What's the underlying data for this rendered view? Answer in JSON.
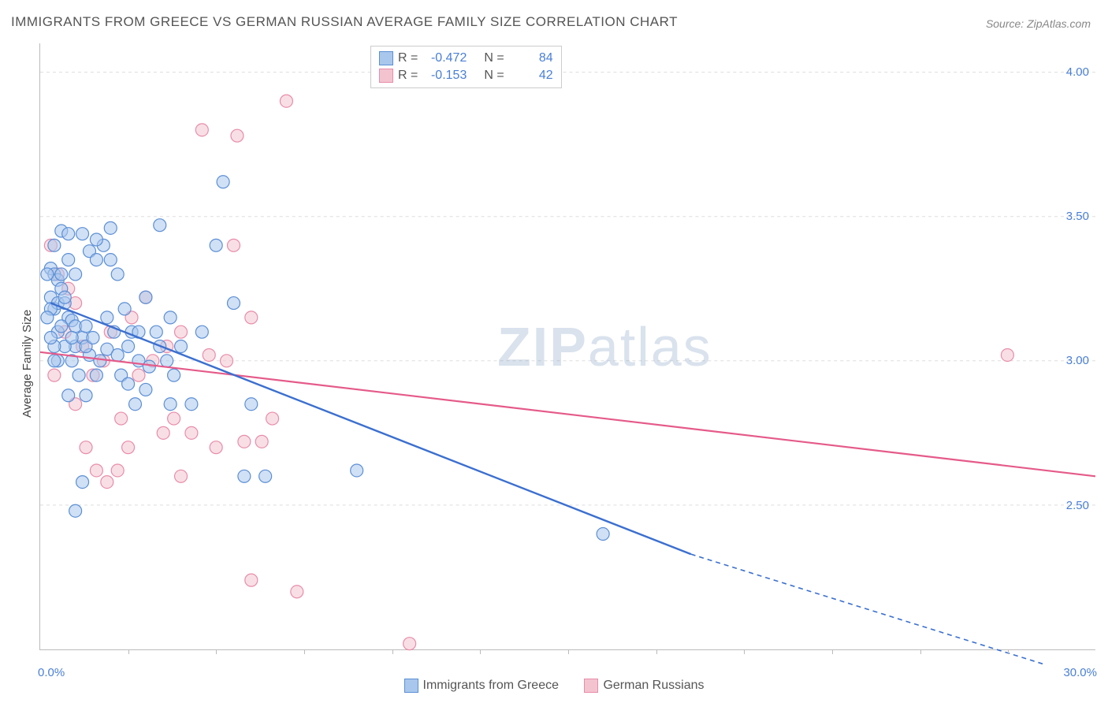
{
  "title": "IMMIGRANTS FROM GREECE VS GERMAN RUSSIAN AVERAGE FAMILY SIZE CORRELATION CHART",
  "source_label": "Source:",
  "source_value": "ZipAtlas.com",
  "watermark_zip": "ZIP",
  "watermark_atlas": "atlas",
  "chart": {
    "type": "scatter",
    "xlim": [
      0,
      30
    ],
    "ylim": [
      2.0,
      4.1
    ],
    "x_min_label": "0.0%",
    "x_max_label": "30.0%",
    "y_ticks": [
      2.5,
      3.0,
      3.5,
      4.0
    ],
    "y_tick_labels": [
      "2.50",
      "3.00",
      "3.50",
      "4.00"
    ],
    "x_tick_positions": [
      2.5,
      5,
      7.5,
      10,
      12.5,
      15,
      17.5,
      20,
      22.5,
      25,
      27.5
    ],
    "y_axis_title": "Average Family Size",
    "background_color": "#ffffff",
    "grid_color": "#dddddd",
    "marker_radius": 8,
    "marker_opacity": 0.55,
    "series": {
      "greece": {
        "label": "Immigrants from Greece",
        "fill": "#a9c7ec",
        "stroke": "#5b8fd6",
        "line_color": "#3b6fd0",
        "R_label": "R =",
        "R_value": "-0.472",
        "N_label": "N =",
        "N_value": "84",
        "trend": {
          "x1": 0.3,
          "y1": 3.2,
          "x2_solid": 18.5,
          "y2_solid": 2.33,
          "x2_dash": 28.5,
          "y2_dash": 1.95
        },
        "points": [
          [
            0.3,
            3.32
          ],
          [
            0.4,
            3.3
          ],
          [
            0.5,
            3.28
          ],
          [
            0.3,
            3.22
          ],
          [
            0.4,
            3.18
          ],
          [
            0.5,
            3.2
          ],
          [
            0.6,
            3.25
          ],
          [
            0.7,
            3.2
          ],
          [
            0.8,
            3.15
          ],
          [
            0.9,
            3.14
          ],
          [
            1.0,
            3.12
          ],
          [
            0.4,
            3.4
          ],
          [
            0.6,
            3.45
          ],
          [
            1.2,
            3.44
          ],
          [
            1.4,
            3.38
          ],
          [
            1.6,
            3.35
          ],
          [
            1.8,
            3.4
          ],
          [
            2.0,
            3.35
          ],
          [
            2.2,
            3.3
          ],
          [
            2.4,
            3.18
          ],
          [
            2.6,
            3.1
          ],
          [
            2.8,
            3.0
          ],
          [
            3.0,
            3.22
          ],
          [
            3.4,
            3.47
          ],
          [
            3.6,
            3.0
          ],
          [
            3.8,
            2.95
          ],
          [
            1.0,
            3.05
          ],
          [
            1.2,
            3.08
          ],
          [
            1.4,
            3.02
          ],
          [
            0.5,
            3.1
          ],
          [
            0.7,
            3.05
          ],
          [
            0.9,
            3.0
          ],
          [
            1.1,
            2.95
          ],
          [
            1.3,
            3.05
          ],
          [
            1.5,
            3.08
          ],
          [
            1.7,
            3.0
          ],
          [
            1.9,
            3.04
          ],
          [
            2.1,
            3.1
          ],
          [
            2.3,
            2.95
          ],
          [
            2.5,
            3.05
          ],
          [
            2.7,
            2.85
          ],
          [
            3.0,
            2.9
          ],
          [
            3.3,
            3.1
          ],
          [
            3.7,
            2.85
          ],
          [
            4.0,
            3.05
          ],
          [
            4.3,
            2.85
          ],
          [
            4.6,
            3.1
          ],
          [
            5.0,
            3.4
          ],
          [
            5.2,
            3.62
          ],
          [
            5.5,
            3.2
          ],
          [
            5.8,
            2.6
          ],
          [
            6.0,
            2.85
          ],
          [
            6.4,
            2.6
          ],
          [
            9.0,
            2.62
          ],
          [
            16.0,
            2.4
          ],
          [
            0.8,
            2.88
          ],
          [
            1.0,
            2.48
          ],
          [
            1.3,
            2.88
          ],
          [
            1.6,
            3.42
          ],
          [
            2.0,
            3.46
          ],
          [
            0.3,
            3.18
          ],
          [
            0.6,
            3.3
          ],
          [
            0.9,
            3.08
          ],
          [
            0.5,
            3.0
          ],
          [
            1.2,
            2.58
          ],
          [
            0.8,
            3.44
          ],
          [
            0.4,
            3.05
          ],
          [
            0.7,
            3.22
          ],
          [
            1.0,
            3.3
          ],
          [
            1.3,
            3.12
          ],
          [
            1.6,
            2.95
          ],
          [
            1.9,
            3.15
          ],
          [
            2.2,
            3.02
          ],
          [
            2.5,
            2.92
          ],
          [
            2.8,
            3.1
          ],
          [
            3.1,
            2.98
          ],
          [
            3.4,
            3.05
          ],
          [
            3.7,
            3.15
          ],
          [
            0.2,
            3.15
          ],
          [
            0.2,
            3.3
          ],
          [
            0.3,
            3.08
          ],
          [
            0.4,
            3.0
          ],
          [
            0.6,
            3.12
          ],
          [
            0.8,
            3.35
          ]
        ]
      },
      "german": {
        "label": "German Russians",
        "fill": "#f3c4d0",
        "stroke": "#e98caa",
        "line_color": "#e55a8a",
        "R_label": "R =",
        "R_value": "-0.153",
        "N_label": "N =",
        "N_value": "42",
        "trend": {
          "x1": 0,
          "y1": 3.03,
          "x2": 30,
          "y2": 2.6
        },
        "points": [
          [
            0.3,
            3.4
          ],
          [
            0.5,
            3.3
          ],
          [
            0.8,
            3.25
          ],
          [
            1.0,
            3.2
          ],
          [
            1.2,
            3.05
          ],
          [
            1.5,
            2.95
          ],
          [
            1.8,
            3.0
          ],
          [
            2.0,
            3.1
          ],
          [
            2.3,
            2.8
          ],
          [
            2.6,
            3.15
          ],
          [
            3.0,
            3.22
          ],
          [
            3.5,
            2.75
          ],
          [
            3.8,
            2.8
          ],
          [
            4.0,
            2.6
          ],
          [
            4.3,
            2.75
          ],
          [
            4.6,
            3.8
          ],
          [
            5.0,
            2.7
          ],
          [
            5.3,
            3.0
          ],
          [
            5.6,
            3.78
          ],
          [
            5.8,
            2.72
          ],
          [
            6.0,
            3.15
          ],
          [
            6.3,
            2.72
          ],
          [
            6.6,
            2.8
          ],
          [
            7.0,
            3.9
          ],
          [
            5.5,
            3.4
          ],
          [
            6.0,
            2.24
          ],
          [
            7.3,
            2.2
          ],
          [
            10.5,
            2.02
          ],
          [
            27.5,
            3.02
          ],
          [
            0.4,
            2.95
          ],
          [
            0.7,
            3.1
          ],
          [
            1.0,
            2.85
          ],
          [
            1.3,
            2.7
          ],
          [
            1.6,
            2.62
          ],
          [
            1.9,
            2.58
          ],
          [
            2.2,
            2.62
          ],
          [
            2.5,
            2.7
          ],
          [
            2.8,
            2.95
          ],
          [
            3.2,
            3.0
          ],
          [
            3.6,
            3.05
          ],
          [
            4.0,
            3.1
          ],
          [
            4.8,
            3.02
          ]
        ]
      }
    }
  }
}
